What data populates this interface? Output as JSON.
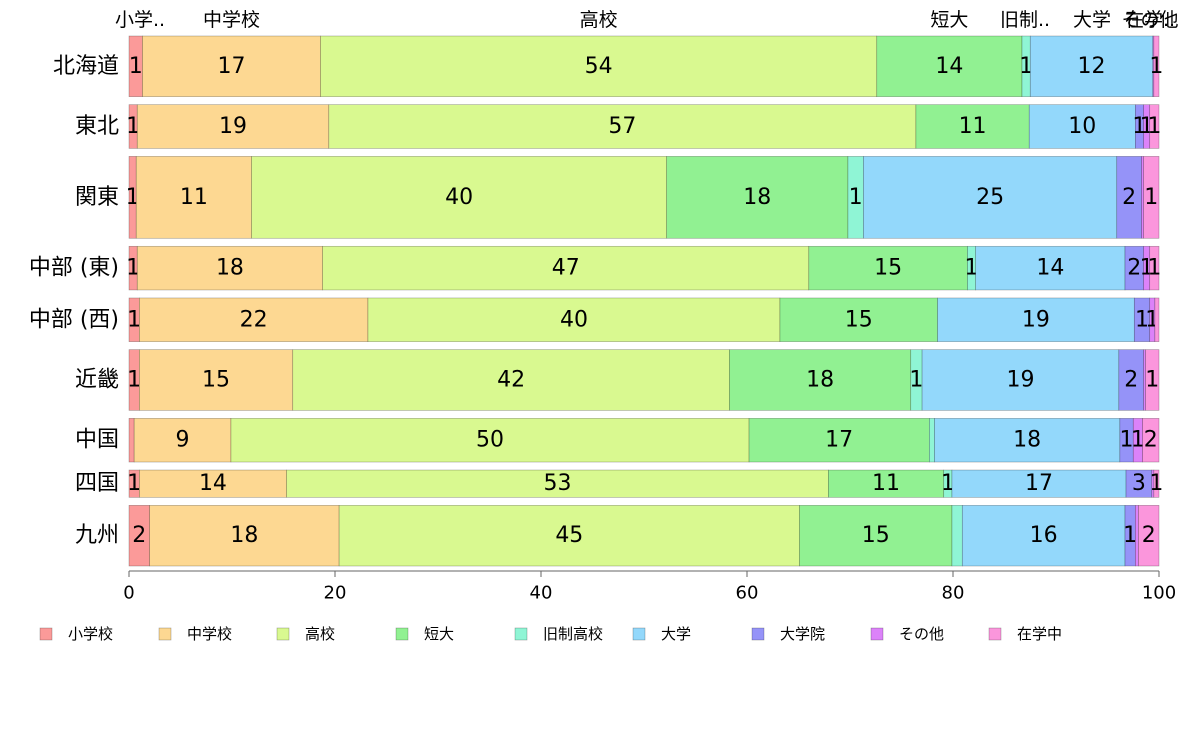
{
  "chart_data": {
    "type": "bar",
    "orientation": "horizontal",
    "stacked": true,
    "percent": true,
    "xlim": [
      0,
      100
    ],
    "xticks": [
      0,
      20,
      40,
      60,
      80,
      100
    ],
    "legend_position": "bottom",
    "categories": [
      "北海道",
      "東北",
      "関東",
      "中部 (東)",
      "中部 (西)",
      "近畿",
      "中国",
      "四国",
      "九州"
    ],
    "category_weights": [
      1.0,
      0.72,
      1.35,
      0.72,
      0.72,
      1.0,
      0.72,
      0.45,
      1.0
    ],
    "top_labels": [
      "小学..",
      "中学校",
      "高校",
      "短大",
      "旧制..",
      "大学",
      "在学..",
      "その他"
    ],
    "series": [
      {
        "name": "小学校",
        "color": "#fb9a99",
        "values": [
          1.3,
          0.8,
          0.7,
          0.8,
          1.0,
          1.0,
          0.5,
          1.0,
          2.0
        ],
        "labels": [
          "1",
          "1",
          "1",
          "1",
          "1",
          "1",
          "",
          "1",
          "2"
        ]
      },
      {
        "name": "中学校",
        "color": "#fdd892",
        "values": [
          17.3,
          18.6,
          11.2,
          18.0,
          22.2,
          14.9,
          9.4,
          14.3,
          18.4
        ],
        "labels": [
          "17",
          "19",
          "11",
          "18",
          "22",
          "15",
          "9",
          "14",
          "18"
        ]
      },
      {
        "name": "高校",
        "color": "#d9f990",
        "values": [
          54.0,
          57.0,
          40.3,
          47.2,
          40.0,
          42.4,
          50.3,
          52.6,
          44.7
        ],
        "labels": [
          "54",
          "57",
          "40",
          "47",
          "40",
          "42",
          "50",
          "53",
          "45"
        ]
      },
      {
        "name": "短大",
        "color": "#91f192",
        "values": [
          14.1,
          11.0,
          17.6,
          15.4,
          15.3,
          17.6,
          17.5,
          11.2,
          14.8
        ],
        "labels": [
          "14",
          "11",
          "18",
          "15",
          "15",
          "18",
          "17",
          "11",
          "15"
        ]
      },
      {
        "name": "旧制高校",
        "color": "#8ff5d5",
        "values": [
          0.8,
          0.0,
          1.5,
          0.8,
          0.0,
          1.1,
          0.5,
          0.8,
          1.0
        ],
        "labels": [
          "1",
          "",
          "1",
          "1",
          "",
          "1",
          "",
          "1",
          ""
        ]
      },
      {
        "name": "大学",
        "color": "#93d8fb",
        "values": [
          11.9,
          10.3,
          24.6,
          14.5,
          19.1,
          19.1,
          18.0,
          16.9,
          15.8
        ],
        "labels": [
          "12",
          "10",
          "25",
          "14",
          "19",
          "19",
          "18",
          "17",
          "16"
        ]
      },
      {
        "name": "大学院",
        "color": "#9593f8",
        "values": [
          0.0,
          0.8,
          2.4,
          1.8,
          1.5,
          2.4,
          1.3,
          2.5,
          1.0
        ],
        "labels": [
          "",
          "1",
          "2",
          "2",
          "1",
          "2",
          "1",
          "3",
          "1"
        ]
      },
      {
        "name": "その他",
        "color": "#dc82f9",
        "values": [
          0.1,
          0.6,
          0.2,
          0.6,
          0.5,
          0.2,
          0.9,
          0.2,
          0.3
        ],
        "labels": [
          "",
          "1",
          "",
          "1",
          "1",
          "",
          "1",
          "",
          ""
        ]
      },
      {
        "name": "在学中",
        "color": "#fb96dc",
        "values": [
          0.5,
          0.9,
          1.5,
          0.9,
          0.4,
          1.3,
          1.6,
          0.5,
          2.0
        ],
        "labels": [
          "1",
          "1",
          "1",
          "1",
          "",
          "1",
          "2",
          "1",
          "2"
        ]
      }
    ]
  }
}
